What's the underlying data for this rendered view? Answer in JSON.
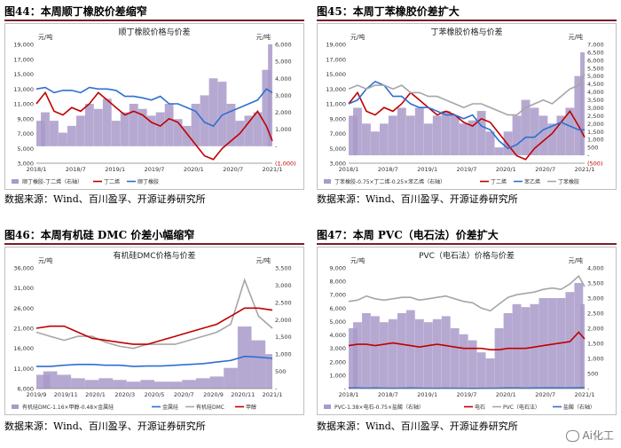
{
  "panels": [
    {
      "id": "p44",
      "label": "图44：本周顺丁橡胶价差缩窄",
      "source": "数据来源：Wind、百川盈孚、开源证券研究所"
    },
    {
      "id": "p45",
      "label": "图45：本周丁苯橡胶价差扩大",
      "source": "数据来源：Wind、百川盈孚、开源证券研究所"
    },
    {
      "id": "p46",
      "label": "图46：本周有机硅 DMC 价差小幅缩窄",
      "source": "数据来源：Wind、百川盈孚、开源证券研究所"
    },
    {
      "id": "p47",
      "label": "图47：本周 PVC（电石法）价差扩大",
      "source": "数据来源：Wind、百川盈孚、开源证券研究所"
    }
  ],
  "watermark": "Ai化工",
  "chart_data": [
    {
      "type": "line",
      "title": "顺丁橡胶价格与价差",
      "left_unit": "元/吨",
      "right_unit": "元/吨",
      "x_ticks": [
        "2018/1",
        "2018/7",
        "2019/1",
        "2019/7",
        "2020/1",
        "2020/7",
        "2021/1"
      ],
      "y_left_ticks": [
        "3,000",
        "5,000",
        "7,000",
        "9,000",
        "11,000",
        "13,000",
        "15,000",
        "17,000",
        "19,000"
      ],
      "y_right_ticks": [
        "(1,000)",
        "-",
        "1,000",
        "2,000",
        "3,000",
        "4,000",
        "5,000",
        "6,000"
      ],
      "ylim_left": [
        3000,
        19000
      ],
      "ylim_right": [
        -1000,
        6000
      ],
      "x": [
        0,
        3,
        6,
        9,
        12,
        15,
        18,
        21,
        24,
        27,
        30,
        33,
        36,
        39,
        42,
        45,
        48,
        51,
        54,
        57,
        60,
        63,
        66,
        69,
        72,
        75,
        78,
        80
      ],
      "x_unit": "months from 2018/1",
      "series": [
        {
          "name": "顺丁橡胶-丁二烯（右轴）",
          "kind": "area",
          "axis": "right",
          "color": "#a99ac9",
          "values": [
            1500,
            2000,
            1500,
            800,
            1200,
            1800,
            2500,
            2200,
            2800,
            1500,
            2000,
            2500,
            2200,
            1800,
            2000,
            2500,
            1600,
            1200,
            2500,
            3000,
            4000,
            3800,
            2500,
            1500,
            1800,
            2000,
            4500,
            6000
          ]
        },
        {
          "name": "丁二烯",
          "kind": "line",
          "axis": "left",
          "color": "#c00000",
          "values": [
            11000,
            12500,
            10000,
            9500,
            10500,
            10000,
            11000,
            12500,
            11500,
            10500,
            9500,
            10000,
            9500,
            8500,
            8000,
            9000,
            8500,
            7000,
            5500,
            4000,
            3500,
            5000,
            6000,
            7000,
            8500,
            10000,
            8000,
            6000
          ]
        },
        {
          "name": "顺丁橡胶",
          "kind": "line",
          "axis": "left",
          "color": "#2e6fd1",
          "values": [
            13000,
            13200,
            12500,
            12800,
            12800,
            12500,
            13200,
            13000,
            13000,
            12800,
            12000,
            12000,
            11800,
            11500,
            12000,
            11000,
            11000,
            10500,
            10000,
            8500,
            8000,
            9500,
            10000,
            10500,
            11000,
            11500,
            13000,
            12500
          ]
        }
      ]
    },
    {
      "type": "line",
      "title": "丁苯橡胶价格与价差",
      "left_unit": "元/吨",
      "right_unit": "元/吨",
      "x_ticks": [
        "2018/1",
        "2018/7",
        "2019/1",
        "2019/7",
        "2020/1",
        "2020/7",
        "2021/1"
      ],
      "y_left_ticks": [
        "3,000",
        "5,000",
        "7,000",
        "9,000",
        "11,000",
        "13,000",
        "15,000",
        "17,000",
        "19,000"
      ],
      "y_right_ticks": [
        "(500)",
        "-",
        "500",
        "1,000",
        "1,500",
        "2,000",
        "2,500",
        "3,000",
        "3,500",
        "4,000",
        "4,500",
        "5,000",
        "5,500",
        "6,000",
        "6,500",
        "7,000"
      ],
      "ylim_left": [
        3000,
        19000
      ],
      "ylim_right": [
        -500,
        7000
      ],
      "x": [
        0,
        3,
        6,
        9,
        12,
        15,
        18,
        21,
        24,
        27,
        30,
        33,
        36,
        39,
        42,
        45,
        48,
        51,
        54,
        57,
        60,
        63,
        66,
        69,
        72,
        75,
        78,
        80
      ],
      "x_unit": "months from 2018/1",
      "series": [
        {
          "name": "丁苯橡胶-0.75×丁二烯-0.25×苯乙烯（右轴）",
          "kind": "area",
          "axis": "right",
          "color": "#a99ac9",
          "values": [
            2500,
            3000,
            2000,
            1500,
            2000,
            2500,
            3000,
            2500,
            3000,
            2000,
            2500,
            2800,
            2500,
            2000,
            2200,
            2800,
            1500,
            500,
            1500,
            2500,
            3500,
            3000,
            2500,
            2000,
            2500,
            3000,
            5000,
            6500
          ]
        },
        {
          "name": "丁二烯",
          "kind": "line",
          "axis": "left",
          "color": "#c00000",
          "values": [
            11000,
            12500,
            10000,
            9500,
            10500,
            10000,
            11000,
            12500,
            11500,
            10500,
            9500,
            10000,
            9500,
            8500,
            8000,
            9000,
            8500,
            7000,
            5500,
            4000,
            3500,
            5000,
            6000,
            7000,
            8500,
            10000,
            8000,
            6500
          ]
        },
        {
          "name": "苯乙烯",
          "kind": "line",
          "axis": "left",
          "color": "#2e6fd1",
          "values": [
            11000,
            11500,
            13000,
            14000,
            13500,
            12000,
            12000,
            11000,
            10500,
            10500,
            10000,
            9500,
            9500,
            9000,
            9500,
            8000,
            7500,
            6000,
            5000,
            5500,
            6500,
            6500,
            7500,
            8000,
            8500,
            8000,
            7500,
            7500
          ]
        },
        {
          "name": "丁苯橡胶",
          "kind": "line",
          "axis": "left",
          "color": "#a6a6a6",
          "values": [
            13000,
            13500,
            13000,
            13500,
            13500,
            13000,
            13500,
            12500,
            12500,
            12000,
            12000,
            11500,
            11000,
            10500,
            11000,
            11000,
            10500,
            10000,
            9500,
            9500,
            10500,
            11000,
            11500,
            11000,
            12000,
            13000,
            13500,
            15000
          ]
        }
      ]
    },
    {
      "type": "line",
      "title": "有机硅DMC价格与价差",
      "left_unit": "元/吨",
      "right_unit": "元/吨",
      "x_ticks": [
        "2019/9",
        "2019/11",
        "2020/1",
        "2020/3",
        "2020/5",
        "2020/7",
        "2020/9",
        "2020/11",
        "2021/1"
      ],
      "y_left_ticks": [
        "6,000",
        "11,000",
        "16,000",
        "21,000",
        "26,000",
        "31,000",
        "36,000"
      ],
      "y_right_ticks": [
        "-",
        "500",
        "1,000",
        "1,500",
        "2,000",
        "2,500",
        "3,000",
        "3,500"
      ],
      "ylim_left": [
        6000,
        36000
      ],
      "ylim_right": [
        0,
        3500
      ],
      "x": [
        0,
        1,
        2,
        3,
        4,
        5,
        6,
        7,
        8,
        9,
        10,
        11,
        12,
        13,
        14,
        15,
        16,
        17
      ],
      "x_unit": "months from 2019/9",
      "series": [
        {
          "name": "有机硅DMC-1.16×甲醇-0.48×金属硅",
          "kind": "area",
          "axis": "right",
          "color": "#a99ac9",
          "values": [
            400,
            500,
            400,
            300,
            250,
            300,
            250,
            200,
            250,
            200,
            200,
            250,
            300,
            350,
            600,
            1800,
            1400,
            1000
          ]
        },
        {
          "name": "金属硅",
          "kind": "line",
          "axis": "left",
          "color": "#2e6fd1",
          "values": [
            11500,
            11500,
            11800,
            12000,
            12000,
            11800,
            11800,
            11500,
            11600,
            11600,
            11800,
            12000,
            12200,
            12600,
            13000,
            14000,
            13800,
            13500
          ]
        },
        {
          "name": "有机硅DMC",
          "kind": "line",
          "axis": "left",
          "color": "#a6a6a6",
          "values": [
            20000,
            19000,
            18000,
            19000,
            19000,
            17500,
            16500,
            16000,
            17000,
            17000,
            17000,
            18000,
            19000,
            20000,
            22000,
            33000,
            24000,
            21000
          ]
        },
        {
          "name": "甲醇",
          "kind": "line",
          "axis": "left",
          "color": "#c00000",
          "values": [
            21000,
            21500,
            21500,
            20000,
            18500,
            18000,
            17500,
            17000,
            17000,
            18000,
            19000,
            20000,
            21000,
            22000,
            24000,
            26000,
            26000,
            25500
          ]
        }
      ]
    },
    {
      "type": "line",
      "title": "PVC（电石法）价格与价差",
      "left_unit": "元/吨",
      "right_unit": "元/吨",
      "x_ticks": [
        "2018/1",
        "2018/7",
        "2019/1",
        "2019/7",
        "2020/1",
        "2020/7",
        "2021/1"
      ],
      "y_left_ticks": [
        "-",
        "1,000",
        "2,000",
        "3,000",
        "4,000",
        "5,000",
        "6,000",
        "7,000",
        "8,000",
        "9,000"
      ],
      "y_right_ticks": [
        "-",
        "500",
        "1,000",
        "1,500",
        "2,000",
        "2,500",
        "3,000",
        "3,500",
        "4,000"
      ],
      "ylim_left": [
        0,
        9000
      ],
      "ylim_right": [
        0,
        4000
      ],
      "x": [
        0,
        3,
        6,
        9,
        12,
        15,
        18,
        21,
        24,
        27,
        30,
        33,
        36,
        39,
        42,
        45,
        48,
        51,
        54,
        57,
        60,
        63,
        66,
        69,
        72,
        75,
        78,
        80
      ],
      "x_unit": "months from 2018/1",
      "series": [
        {
          "name": "PVC-1.38×电石-0.75×盐酸（右轴）",
          "kind": "area",
          "axis": "right",
          "color": "#a99ac9",
          "values": [
            2000,
            2200,
            2500,
            2400,
            2200,
            2300,
            2500,
            2600,
            2300,
            2200,
            2300,
            2400,
            2000,
            1800,
            1600,
            1200,
            1000,
            2000,
            2500,
            2800,
            2700,
            2800,
            3000,
            3000,
            3000,
            3200,
            3500,
            2800
          ]
        },
        {
          "name": "电石",
          "kind": "line",
          "axis": "left",
          "color": "#c00000",
          "values": [
            3200,
            3300,
            3300,
            3200,
            3300,
            3400,
            3300,
            3200,
            3100,
            3200,
            3300,
            3200,
            3100,
            3000,
            3000,
            3000,
            2900,
            2900,
            3000,
            3000,
            3000,
            3100,
            3200,
            3300,
            3400,
            3500,
            4200,
            3700
          ]
        },
        {
          "name": "PVC（电石法）",
          "kind": "line",
          "axis": "left",
          "color": "#a6a6a6",
          "values": [
            6500,
            6600,
            6900,
            6700,
            6600,
            6700,
            6800,
            6800,
            6600,
            6700,
            6800,
            6900,
            6700,
            6500,
            6400,
            6000,
            5800,
            6300,
            6800,
            7000,
            7100,
            7200,
            7400,
            7500,
            7400,
            7800,
            8400,
            7600
          ]
        },
        {
          "name": "盐酸（右轴）",
          "kind": "line",
          "axis": "right",
          "color": "#2e6fd1",
          "values": [
            20,
            20,
            15,
            20,
            15,
            10,
            15,
            20,
            15,
            10,
            10,
            15,
            10,
            10,
            5,
            10,
            10,
            15,
            20,
            20,
            15,
            20,
            20,
            25,
            20,
            20,
            25,
            30
          ]
        }
      ]
    }
  ]
}
